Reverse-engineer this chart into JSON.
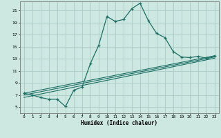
{
  "xlabel": "Humidex (Indice chaleur)",
  "background_color": "#cce8e0",
  "grid_color": "#aaccC4",
  "line_color": "#1a6e64",
  "xlim": [
    -0.5,
    23.5
  ],
  "ylim": [
    4.0,
    22.5
  ],
  "xticks": [
    0,
    1,
    2,
    3,
    4,
    5,
    6,
    7,
    8,
    9,
    10,
    11,
    12,
    13,
    14,
    15,
    16,
    17,
    18,
    19,
    20,
    21,
    22,
    23
  ],
  "yticks": [
    5,
    7,
    9,
    11,
    13,
    15,
    17,
    19,
    21
  ],
  "series": [
    [
      0,
      7.3
    ],
    [
      1,
      7.0
    ],
    [
      2,
      6.6
    ],
    [
      3,
      6.3
    ],
    [
      4,
      6.3
    ],
    [
      5,
      5.1
    ],
    [
      6,
      7.8
    ],
    [
      7,
      8.3
    ],
    [
      8,
      12.2
    ],
    [
      9,
      15.2
    ],
    [
      10,
      20.0
    ],
    [
      11,
      19.2
    ],
    [
      12,
      19.5
    ],
    [
      13,
      21.3
    ],
    [
      14,
      22.2
    ],
    [
      15,
      19.3
    ],
    [
      16,
      17.2
    ],
    [
      17,
      16.5
    ],
    [
      18,
      14.2
    ],
    [
      19,
      13.3
    ],
    [
      20,
      13.2
    ],
    [
      21,
      13.4
    ],
    [
      22,
      13.1
    ],
    [
      23,
      13.5
    ]
  ],
  "line2": [
    [
      0,
      7.3
    ],
    [
      23,
      13.5
    ]
  ],
  "line3": [
    [
      0,
      7.0
    ],
    [
      23,
      13.3
    ]
  ],
  "line4": [
    [
      0,
      6.6
    ],
    [
      23,
      13.1
    ]
  ]
}
